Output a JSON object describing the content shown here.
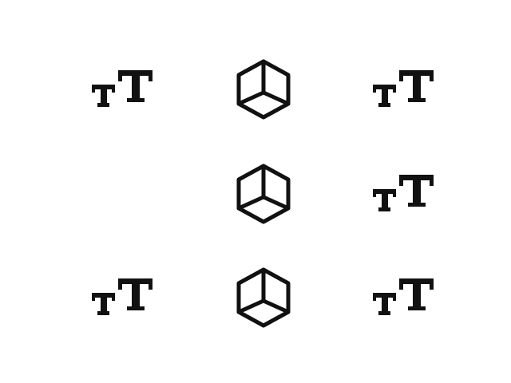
{
  "grid": {
    "rows": 3,
    "columns": 3,
    "cells": [
      [
        "text-size-icon",
        "cube-icon",
        "text-size-icon"
      ],
      [
        null,
        "cube-icon",
        "text-size-icon"
      ],
      [
        "text-size-icon",
        "cube-icon",
        "text-size-icon"
      ]
    ]
  },
  "colors": {
    "background": "#ffffff",
    "icon": "#111111"
  }
}
